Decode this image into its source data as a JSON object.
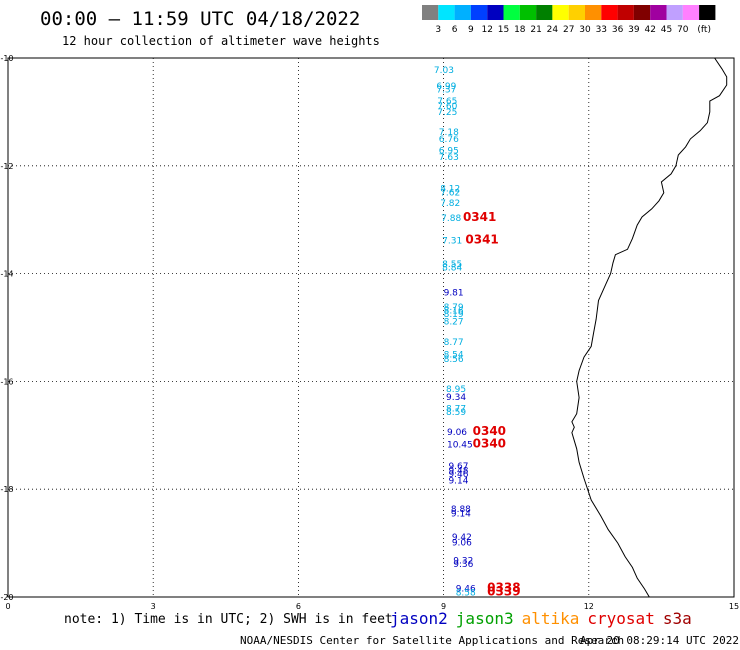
{
  "header": {
    "title": "00:00 – 11:59 UTC 04/18/2022",
    "subtitle": "12 hour collection of altimeter wave heights"
  },
  "legend": {
    "unit": "(ft)",
    "bins": [
      {
        "color": "#808080",
        "label": ""
      },
      {
        "color": "#00e5ff",
        "label": "3"
      },
      {
        "color": "#00b0ff",
        "label": "6"
      },
      {
        "color": "#0040ff",
        "label": "9"
      },
      {
        "color": "#0000c0",
        "label": "12"
      },
      {
        "color": "#00ff40",
        "label": "15"
      },
      {
        "color": "#00c000",
        "label": "18"
      },
      {
        "color": "#008000",
        "label": "21"
      },
      {
        "color": "#ffff00",
        "label": "24"
      },
      {
        "color": "#ffd000",
        "label": "27"
      },
      {
        "color": "#ff9000",
        "label": "30"
      },
      {
        "color": "#ff0000",
        "label": "33"
      },
      {
        "color": "#c00000",
        "label": "36"
      },
      {
        "color": "#800000",
        "label": "39"
      },
      {
        "color": "#a000a0",
        "label": "42"
      },
      {
        "color": "#c0a0ff",
        "label": "45"
      },
      {
        "color": "#ff80ff",
        "label": "70"
      },
      {
        "color": "#000000",
        "label": ""
      }
    ]
  },
  "map": {
    "lon_range": [
      0,
      15
    ],
    "lat_range": [
      -20,
      -10
    ],
    "x_ticks": [
      "0",
      "3",
      "6",
      "9",
      "12",
      "15"
    ],
    "y_ticks": [
      "-10",
      "-12",
      "-14",
      "-16",
      "-18",
      "-20"
    ],
    "colors": {
      "cyan": "#00aee0",
      "blue": "#0000c0",
      "red": "#e00000"
    }
  },
  "chart_data": {
    "type": "scatter",
    "x_range": [
      0,
      15
    ],
    "y_range": [
      -20,
      -10
    ],
    "observations": [
      {
        "lon": 8.8,
        "lat": -10.2,
        "text": "7.03",
        "color": "cyan"
      },
      {
        "lon": 8.85,
        "lat": -10.5,
        "text": "6.99",
        "color": "cyan"
      },
      {
        "lon": 8.85,
        "lat": -10.57,
        "text": "7.37",
        "color": "cyan"
      },
      {
        "lon": 8.87,
        "lat": -10.78,
        "text": "7.65",
        "color": "cyan"
      },
      {
        "lon": 8.87,
        "lat": -10.87,
        "text": "7.60",
        "color": "cyan"
      },
      {
        "lon": 8.87,
        "lat": -10.98,
        "text": "7.25",
        "color": "cyan"
      },
      {
        "lon": 8.9,
        "lat": -11.35,
        "text": "7.18",
        "color": "cyan"
      },
      {
        "lon": 8.9,
        "lat": -11.48,
        "text": "6.76",
        "color": "cyan"
      },
      {
        "lon": 8.9,
        "lat": -11.7,
        "text": "6.95",
        "color": "cyan"
      },
      {
        "lon": 8.9,
        "lat": -11.82,
        "text": "7.63",
        "color": "cyan"
      },
      {
        "lon": 8.93,
        "lat": -12.4,
        "text": "8.12",
        "color": "cyan"
      },
      {
        "lon": 8.93,
        "lat": -12.48,
        "text": "7.62",
        "color": "cyan"
      },
      {
        "lon": 8.93,
        "lat": -12.67,
        "text": "7.82",
        "color": "cyan"
      },
      {
        "lon": 8.95,
        "lat": -12.95,
        "text": "7.88",
        "color": "cyan"
      },
      {
        "lon": 9.4,
        "lat": -12.95,
        "text": "0341",
        "color": "red"
      },
      {
        "lon": 8.97,
        "lat": -13.37,
        "text": "7.31",
        "color": "cyan"
      },
      {
        "lon": 9.45,
        "lat": -13.37,
        "text": "0341",
        "color": "red"
      },
      {
        "lon": 8.97,
        "lat": -13.8,
        "text": "8.55",
        "color": "cyan"
      },
      {
        "lon": 8.97,
        "lat": -13.87,
        "text": "8.84",
        "color": "cyan"
      },
      {
        "lon": 9.0,
        "lat": -14.33,
        "text": "9.81",
        "color": "blue"
      },
      {
        "lon": 9.0,
        "lat": -14.6,
        "text": "8.79",
        "color": "cyan"
      },
      {
        "lon": 9.0,
        "lat": -14.67,
        "text": "8.16",
        "color": "cyan"
      },
      {
        "lon": 9.0,
        "lat": -14.73,
        "text": "8.19",
        "color": "cyan"
      },
      {
        "lon": 9.0,
        "lat": -14.87,
        "text": "8.27",
        "color": "cyan"
      },
      {
        "lon": 9.0,
        "lat": -15.25,
        "text": "8.77",
        "color": "cyan"
      },
      {
        "lon": 9.0,
        "lat": -15.48,
        "text": "8.54",
        "color": "cyan"
      },
      {
        "lon": 9.0,
        "lat": -15.57,
        "text": "8.56",
        "color": "cyan"
      },
      {
        "lon": 9.05,
        "lat": -16.12,
        "text": "8.95",
        "color": "cyan"
      },
      {
        "lon": 9.05,
        "lat": -16.27,
        "text": "9.34",
        "color": "blue"
      },
      {
        "lon": 9.05,
        "lat": -16.48,
        "text": "8.77",
        "color": "cyan"
      },
      {
        "lon": 9.05,
        "lat": -16.55,
        "text": "8.59",
        "color": "cyan"
      },
      {
        "lon": 9.07,
        "lat": -16.92,
        "text": "9.06",
        "color": "blue"
      },
      {
        "lon": 9.6,
        "lat": -16.92,
        "text": "0340",
        "color": "red"
      },
      {
        "lon": 9.07,
        "lat": -17.15,
        "text": "10.45",
        "color": "blue"
      },
      {
        "lon": 9.6,
        "lat": -17.15,
        "text": "0340",
        "color": "red"
      },
      {
        "lon": 9.1,
        "lat": -17.55,
        "text": "9.67",
        "color": "blue"
      },
      {
        "lon": 9.1,
        "lat": -17.63,
        "text": "9.48",
        "color": "blue"
      },
      {
        "lon": 9.1,
        "lat": -17.7,
        "text": "9.46",
        "color": "blue"
      },
      {
        "lon": 9.1,
        "lat": -17.82,
        "text": "9.14",
        "color": "blue"
      },
      {
        "lon": 9.15,
        "lat": -18.35,
        "text": "8.88",
        "color": "blue"
      },
      {
        "lon": 9.15,
        "lat": -18.43,
        "text": "9.14",
        "color": "blue"
      },
      {
        "lon": 9.17,
        "lat": -18.87,
        "text": "9.42",
        "color": "blue"
      },
      {
        "lon": 9.17,
        "lat": -18.97,
        "text": "9.06",
        "color": "blue"
      },
      {
        "lon": 9.2,
        "lat": -19.3,
        "text": "9.32",
        "color": "blue"
      },
      {
        "lon": 9.2,
        "lat": -19.37,
        "text": "9.36",
        "color": "blue"
      },
      {
        "lon": 9.25,
        "lat": -19.82,
        "text": "9.46",
        "color": "blue"
      },
      {
        "lon": 9.25,
        "lat": -19.9,
        "text": "8.58",
        "color": "cyan"
      },
      {
        "lon": 9.9,
        "lat": -19.82,
        "text": "0338",
        "color": "red"
      },
      {
        "lon": 9.9,
        "lat": -19.9,
        "text": "0339",
        "color": "red"
      }
    ]
  },
  "coastline": [
    [
      14.6,
      -10.0
    ],
    [
      14.75,
      -10.2
    ],
    [
      14.85,
      -10.35
    ],
    [
      14.85,
      -10.5
    ],
    [
      14.7,
      -10.7
    ],
    [
      14.5,
      -10.8
    ],
    [
      14.5,
      -11.0
    ],
    [
      14.45,
      -11.2
    ],
    [
      14.3,
      -11.35
    ],
    [
      14.1,
      -11.5
    ],
    [
      14.0,
      -11.65
    ],
    [
      13.85,
      -11.8
    ],
    [
      13.8,
      -12.0
    ],
    [
      13.7,
      -12.15
    ],
    [
      13.5,
      -12.3
    ],
    [
      13.55,
      -12.5
    ],
    [
      13.45,
      -12.65
    ],
    [
      13.3,
      -12.8
    ],
    [
      13.1,
      -12.95
    ],
    [
      13.0,
      -13.1
    ],
    [
      12.9,
      -13.35
    ],
    [
      12.8,
      -13.55
    ],
    [
      12.55,
      -13.65
    ],
    [
      12.5,
      -13.8
    ],
    [
      12.45,
      -14.0
    ],
    [
      12.35,
      -14.2
    ],
    [
      12.2,
      -14.5
    ],
    [
      12.15,
      -14.85
    ],
    [
      12.1,
      -15.1
    ],
    [
      12.05,
      -15.35
    ],
    [
      11.9,
      -15.55
    ],
    [
      11.8,
      -15.8
    ],
    [
      11.75,
      -16.0
    ],
    [
      11.8,
      -16.3
    ],
    [
      11.75,
      -16.6
    ],
    [
      11.65,
      -16.75
    ],
    [
      11.7,
      -16.85
    ],
    [
      11.65,
      -16.95
    ],
    [
      11.75,
      -17.25
    ],
    [
      11.8,
      -17.5
    ],
    [
      11.9,
      -17.8
    ],
    [
      12.05,
      -18.2
    ],
    [
      12.25,
      -18.5
    ],
    [
      12.4,
      -18.75
    ],
    [
      12.6,
      -19.0
    ],
    [
      12.75,
      -19.25
    ],
    [
      12.9,
      -19.45
    ],
    [
      13.0,
      -19.65
    ],
    [
      13.15,
      -19.85
    ],
    [
      13.25,
      -20.0
    ]
  ],
  "bottom": {
    "note": "note: 1) Time is in UTC; 2) SWH is in feet",
    "satellites": [
      {
        "name": "jason2",
        "color": "#0000c0"
      },
      {
        "name": "jason3",
        "color": "#00a000"
      },
      {
        "name": "altika",
        "color": "#ff9000"
      },
      {
        "name": "cryosat",
        "color": "#e00000"
      },
      {
        "name": "s3a",
        "color": "#a00000"
      }
    ],
    "credit": "NOAA/NESDIS Center for Satellite Applications and Research",
    "timestamp": "Apr 20 08:29:14 UTC 2022"
  }
}
